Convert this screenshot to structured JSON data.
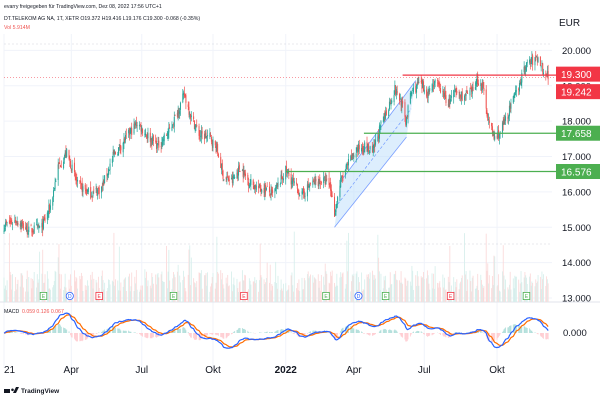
{
  "header": {
    "line1": "evarry freigegeben für TradingView.com, Dez 08, 2022 17:56 UTC+1",
    "line2": "DT.TELEKOM AG NA, 1T, XETR  O19.372  H19.416  L19.176  C19.300  -0.068 (-0.35%)",
    "line3": "Vol  5.914M"
  },
  "colors": {
    "up": "#26a69a",
    "down": "#ef5350",
    "red_line": "#f23645",
    "green_line": "#4caf50",
    "channel_fill": "#bbdefb",
    "channel_stroke": "#2962ff",
    "macd": "#2962ff",
    "signal": "#ff6d00",
    "hist_up": "#b2dfdb",
    "hist_down": "#ffcdd2",
    "text": "#131722",
    "grid": "#f0f3fa",
    "axis_text": "#131722"
  },
  "footer": {
    "logo_text": "TradingView",
    "logo_icon": "tradingview-logo-icon"
  },
  "chart_data": {
    "type": "candlestick",
    "title": "DT.TELEKOM AG NA, 1T, XETR",
    "currency": "EUR",
    "ylim": [
      13.0,
      20.35
    ],
    "price_ticks": [
      "20.000",
      "19.000",
      "18.000",
      "17.000",
      "16.000",
      "15.000",
      "14.000",
      "13.000"
    ],
    "x_labels": [
      "21",
      "Apr",
      "Jul",
      "Okt",
      "2022",
      "Apr",
      "Jul",
      "Okt"
    ],
    "x_label_dates": [
      "2021-01-04",
      "2021-04-01",
      "2021-07-01",
      "2021-10-01",
      "2022-01-03",
      "2022-04-01",
      "2022-07-01",
      "2022-10-03"
    ],
    "close_path": [
      [
        "2021-01-04",
        15.05
      ],
      [
        "2021-01-20",
        15.2
      ],
      [
        "2021-02-05",
        14.9
      ],
      [
        "2021-02-22",
        15.0
      ],
      [
        "2021-03-05",
        15.6
      ],
      [
        "2021-03-15",
        16.7
      ],
      [
        "2021-03-26",
        17.1
      ],
      [
        "2021-04-09",
        16.2
      ],
      [
        "2021-04-26",
        15.95
      ],
      [
        "2021-05-10",
        16.1
      ],
      [
        "2021-05-25",
        17.0
      ],
      [
        "2021-06-10",
        17.5
      ],
      [
        "2021-06-25",
        17.95
      ],
      [
        "2021-07-08",
        17.6
      ],
      [
        "2021-07-22",
        17.3
      ],
      [
        "2021-08-05",
        17.7
      ],
      [
        "2021-08-16",
        18.25
      ],
      [
        "2021-08-25",
        18.75
      ],
      [
        "2021-09-03",
        18.1
      ],
      [
        "2021-09-14",
        17.6
      ],
      [
        "2021-09-27",
        17.55
      ],
      [
        "2021-10-06",
        17.2
      ],
      [
        "2021-10-15",
        16.4
      ],
      [
        "2021-10-26",
        16.3
      ],
      [
        "2021-11-05",
        16.7
      ],
      [
        "2021-11-16",
        16.3
      ],
      [
        "2021-11-29",
        16.1
      ],
      [
        "2021-12-08",
        16.1
      ],
      [
        "2021-12-17",
        15.9
      ],
      [
        "2022-01-03",
        16.6
      ],
      [
        "2022-01-14",
        16.2
      ],
      [
        "2022-01-24",
        15.9
      ],
      [
        "2022-02-03",
        16.2
      ],
      [
        "2022-02-14",
        16.3
      ],
      [
        "2022-02-22",
        16.3
      ],
      [
        "2022-03-01",
        16.2
      ],
      [
        "2022-03-07",
        15.4
      ],
      [
        "2022-03-15",
        16.3
      ],
      [
        "2022-03-25",
        16.8
      ],
      [
        "2022-04-05",
        17.2
      ],
      [
        "2022-04-14",
        17.3
      ],
      [
        "2022-04-25",
        17.1
      ],
      [
        "2022-05-05",
        17.8
      ],
      [
        "2022-05-17",
        18.5
      ],
      [
        "2022-05-24",
        18.9
      ],
      [
        "2022-06-01",
        18.55
      ],
      [
        "2022-06-07",
        18.0
      ],
      [
        "2022-06-14",
        18.8
      ],
      [
        "2022-06-24",
        19.05
      ],
      [
        "2022-07-05",
        18.8
      ],
      [
        "2022-07-14",
        19.1
      ],
      [
        "2022-07-22",
        18.9
      ],
      [
        "2022-08-01",
        18.5
      ],
      [
        "2022-08-09",
        18.8
      ],
      [
        "2022-08-22",
        18.7
      ],
      [
        "2022-09-01",
        18.8
      ],
      [
        "2022-09-07",
        19.2
      ],
      [
        "2022-09-15",
        18.9
      ],
      [
        "2022-09-23",
        17.9
      ],
      [
        "2022-09-30",
        17.5
      ],
      [
        "2022-10-07",
        17.7
      ],
      [
        "2022-10-17",
        18.2
      ],
      [
        "2022-10-26",
        18.7
      ],
      [
        "2022-11-03",
        19.2
      ],
      [
        "2022-11-10",
        19.6
      ],
      [
        "2022-11-18",
        19.7
      ],
      [
        "2022-11-25",
        19.8
      ],
      [
        "2022-12-01",
        19.5
      ],
      [
        "2022-12-08",
        19.3
      ]
    ],
    "horizontal_levels": [
      {
        "value": 19.3,
        "label": "19.300",
        "color": "red",
        "from": "2022-06-03"
      },
      {
        "value": 19.242,
        "label": "19.242",
        "color": "red",
        "from": null
      },
      {
        "value": 17.658,
        "label": "17.658",
        "color": "green",
        "from": "2022-04-14"
      },
      {
        "value": 16.576,
        "label": "16.576",
        "color": "green",
        "from": "2022-01-03"
      }
    ],
    "trend_channel": {
      "lower": [
        [
          "2022-03-07",
          15.0
        ],
        [
          "2022-06-08",
          17.55
        ]
      ],
      "upper": [
        [
          "2022-03-15",
          16.3
        ],
        [
          "2022-06-20",
          19.15
        ]
      ]
    },
    "markers": [
      {
        "date": "2021-02-24",
        "letter": "E",
        "color": "green"
      },
      {
        "date": "2021-03-30",
        "letter": "D",
        "color": "blue"
      },
      {
        "date": "2021-05-07",
        "letter": "E",
        "color": "red"
      },
      {
        "date": "2021-08-11",
        "letter": "E",
        "color": "green"
      },
      {
        "date": "2021-11-10",
        "letter": "E",
        "color": "red"
      },
      {
        "date": "2022-02-24",
        "letter": "E",
        "color": "green"
      },
      {
        "date": "2022-04-07",
        "letter": "D",
        "color": "blue"
      },
      {
        "date": "2022-05-12",
        "letter": "E",
        "color": "green"
      },
      {
        "date": "2022-08-04",
        "letter": "E",
        "color": "red"
      },
      {
        "date": "2022-11-10",
        "letter": "E",
        "color": "green"
      }
    ],
    "macd": {
      "label": "MACD",
      "values": "0.059  0.126  0.067",
      "axis_label": "0.000"
    }
  }
}
